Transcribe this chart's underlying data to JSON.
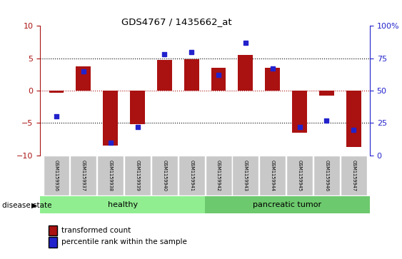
{
  "title": "GDS4767 / 1435662_at",
  "samples": [
    "GSM1159936",
    "GSM1159937",
    "GSM1159938",
    "GSM1159939",
    "GSM1159940",
    "GSM1159941",
    "GSM1159942",
    "GSM1159943",
    "GSM1159944",
    "GSM1159945",
    "GSM1159946",
    "GSM1159947"
  ],
  "bar_values": [
    -0.3,
    3.8,
    -8.5,
    -5.2,
    4.7,
    4.9,
    3.5,
    5.5,
    3.5,
    -6.5,
    -0.8,
    -8.7
  ],
  "percentile_values": [
    30,
    65,
    10,
    22,
    78,
    80,
    62,
    87,
    67,
    22,
    27,
    20
  ],
  "healthy_count": 6,
  "tumor_count": 6,
  "ylim_left": [
    -10,
    10
  ],
  "ylim_right": [
    0,
    100
  ],
  "bar_color": "#AA1111",
  "dot_color": "#2222CC",
  "healthy_color": "#90EE90",
  "tumor_color": "#6DC96D",
  "bg_color": "#C8C8C8",
  "plot_bg": "#FFFFFF",
  "legend_items": [
    "transformed count",
    "percentile rank within the sample"
  ],
  "disease_label": "disease state",
  "healthy_label": "healthy",
  "tumor_label": "pancreatic tumor"
}
